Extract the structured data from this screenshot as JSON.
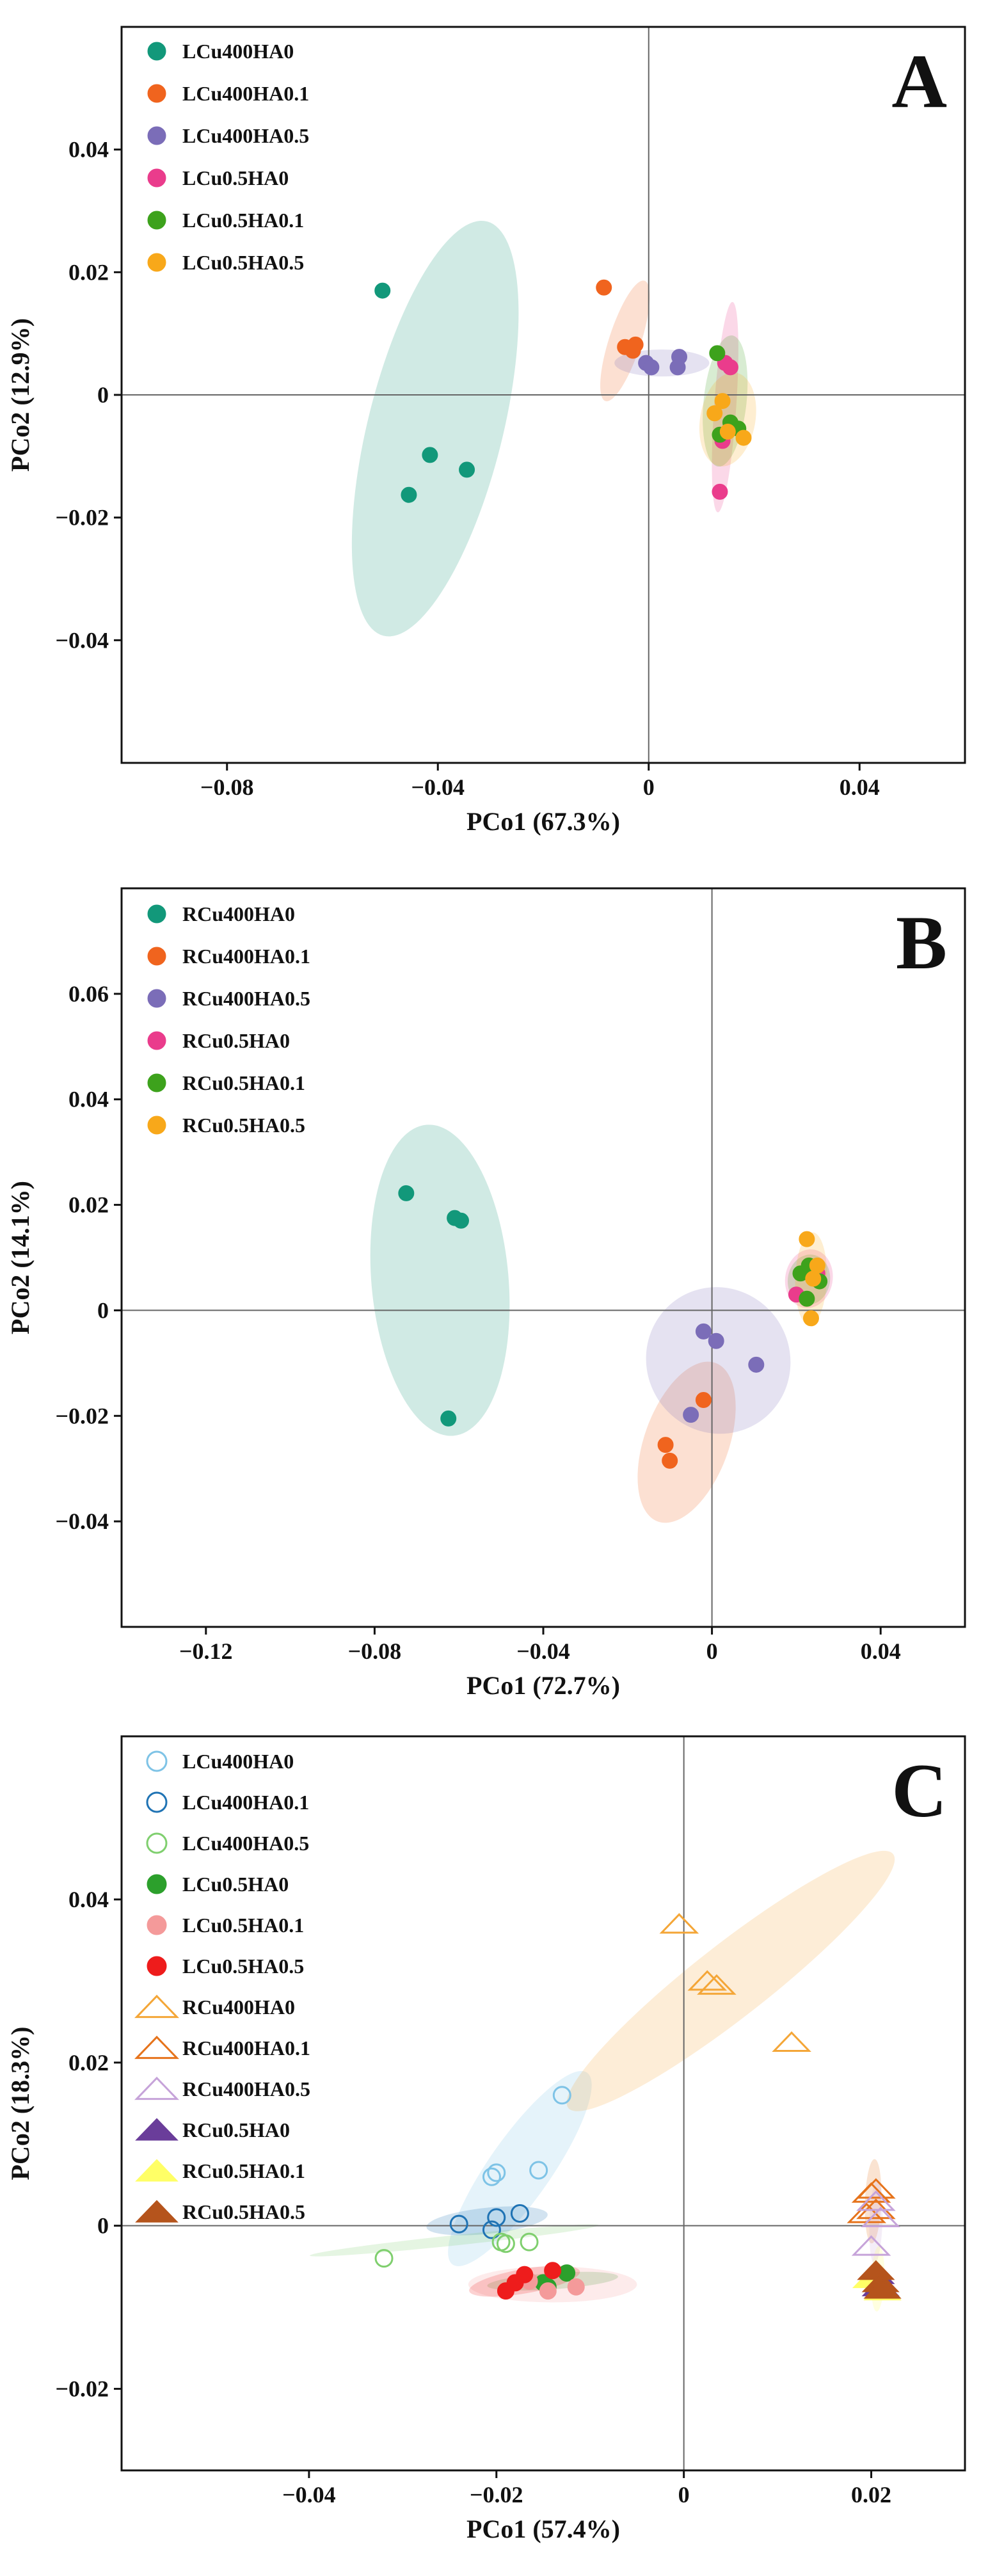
{
  "chart_data": [
    {
      "panel": "A",
      "type": "scatter",
      "xlabel": "PCo1 (67.3%)",
      "ylabel": "PCo2 (12.9%)",
      "xlim": [
        -0.1,
        0.06
      ],
      "ylim": [
        -0.06,
        0.06
      ],
      "xticks": [
        -0.08,
        -0.04,
        0,
        0.04
      ],
      "xtick_labels": [
        "−0.08",
        "−0.04",
        "0",
        "0.04"
      ],
      "yticks": [
        -0.04,
        -0.02,
        0,
        0.02,
        0.04
      ],
      "ytick_labels": [
        "−0.04",
        "−0.02",
        "0",
        "0.02",
        "0.04"
      ],
      "series": [
        {
          "name": "LCu400HA0",
          "color": "#12987a",
          "marker": "circle",
          "points": [
            [
              -0.0505,
              0.017
            ],
            [
              -0.0415,
              -0.0098
            ],
            [
              -0.0455,
              -0.0163
            ],
            [
              -0.0345,
              -0.0122
            ]
          ],
          "ellipse": {
            "cx": -0.0405,
            "cy": -0.0055,
            "rx": 0.0405,
            "ry": 0.011,
            "angle": -76
          }
        },
        {
          "name": "LCu400HA0.1",
          "color": "#f0641e",
          "marker": "circle",
          "points": [
            [
              -0.0085,
              0.0175
            ],
            [
              -0.0045,
              0.0078
            ],
            [
              -0.0025,
              0.0082
            ],
            [
              -0.003,
              0.0072
            ]
          ],
          "ellipse": {
            "cx": -0.0045,
            "cy": 0.0088,
            "rx": 0.012,
            "ry": 0.0026,
            "angle": -72
          }
        },
        {
          "name": "LCu400HA0.5",
          "color": "#7b6db8",
          "marker": "circle",
          "points": [
            [
              -0.0005,
              0.0052
            ],
            [
              0.0005,
              0.0045
            ],
            [
              0.0058,
              0.0062
            ],
            [
              0.0055,
              0.0045
            ]
          ],
          "ellipse": {
            "cx": 0.0025,
            "cy": 0.0052,
            "rx": 0.009,
            "ry": 0.0022,
            "angle": 0
          }
        },
        {
          "name": "LCu0.5HA0",
          "color": "#ea3c8c",
          "marker": "circle",
          "points": [
            [
              0.0135,
              -0.0158
            ],
            [
              0.0145,
              0.0052
            ],
            [
              0.0155,
              0.0045
            ],
            [
              0.014,
              -0.0075
            ]
          ],
          "ellipse": {
            "cx": 0.0145,
            "cy": -0.002,
            "rx": 0.02,
            "ry": 0.0018,
            "angle": -86
          }
        },
        {
          "name": "LCu0.5HA0.1",
          "color": "#3da21c",
          "marker": "circle",
          "points": [
            [
              0.013,
              0.0068
            ],
            [
              0.0135,
              -0.0065
            ],
            [
              0.0155,
              -0.0045
            ],
            [
              0.017,
              -0.0055
            ]
          ],
          "ellipse": {
            "cx": 0.0145,
            "cy": -0.001,
            "rx": 0.0125,
            "ry": 0.0035,
            "angle": -84
          }
        },
        {
          "name": "LCu0.5HA0.5",
          "color": "#f8a81a",
          "marker": "circle",
          "points": [
            [
              0.0125,
              -0.003
            ],
            [
              0.014,
              -0.001
            ],
            [
              0.015,
              -0.006
            ],
            [
              0.018,
              -0.007
            ]
          ],
          "ellipse": {
            "cx": 0.015,
            "cy": -0.004,
            "rx": 0.009,
            "ry": 0.0045,
            "angle": -80
          }
        }
      ]
    },
    {
      "panel": "B",
      "type": "scatter",
      "xlabel": "PCo1 (72.7%)",
      "ylabel": "PCo2 (14.1%)",
      "xlim": [
        -0.14,
        0.06
      ],
      "ylim": [
        -0.06,
        0.08
      ],
      "xticks": [
        -0.12,
        -0.08,
        -0.04,
        0,
        0.04
      ],
      "xtick_labels": [
        "−0.12",
        "−0.08",
        "−0.04",
        "0",
        "0.04"
      ],
      "yticks": [
        -0.04,
        -0.02,
        0,
        0.02,
        0.04,
        0.06
      ],
      "ytick_labels": [
        "−0.04",
        "−0.02",
        "0",
        "0.02",
        "0.04",
        "0.06"
      ],
      "series": [
        {
          "name": "RCu400HA0",
          "color": "#12987a",
          "marker": "circle",
          "points": [
            [
              -0.0725,
              0.0222
            ],
            [
              -0.061,
              0.0175
            ],
            [
              -0.0595,
              0.017
            ],
            [
              -0.0625,
              -0.0205
            ]
          ],
          "ellipse": {
            "cx": -0.0645,
            "cy": 0.0057,
            "rx": 0.037,
            "ry": 0.013,
            "angle": -95
          }
        },
        {
          "name": "RCu400HA0.1",
          "color": "#f0641e",
          "marker": "circle",
          "points": [
            [
              -0.002,
              -0.017
            ],
            [
              -0.011,
              -0.0255
            ],
            [
              -0.01,
              -0.0285
            ]
          ],
          "ellipse": {
            "cx": -0.006,
            "cy": -0.025,
            "rx": 0.02,
            "ry": 0.008,
            "angle": -70
          }
        },
        {
          "name": "RCu400HA0.5",
          "color": "#7b6db8",
          "marker": "circle",
          "points": [
            [
              -0.002,
              -0.004
            ],
            [
              0.001,
              -0.0058
            ],
            [
              0.0105,
              -0.0103
            ],
            [
              -0.005,
              -0.0198
            ]
          ],
          "ellipse": {
            "cx": 0.0015,
            "cy": -0.0095,
            "rx": 0.017,
            "ry": 0.014,
            "angle": -30
          }
        },
        {
          "name": "RCu0.5HA0",
          "color": "#ea3c8c",
          "marker": "circle",
          "points": [
            [
              0.02,
              0.003
            ],
            [
              0.0235,
              0.008
            ],
            [
              0.025,
              0.007
            ]
          ],
          "ellipse": {
            "cx": 0.023,
            "cy": 0.006,
            "rx": 0.007,
            "ry": 0.0045,
            "angle": -80
          }
        },
        {
          "name": "RCu0.5HA0.1",
          "color": "#3da21c",
          "marker": "circle",
          "points": [
            [
              0.021,
              0.007
            ],
            [
              0.023,
              0.0085
            ],
            [
              0.0255,
              0.0055
            ],
            [
              0.0225,
              0.0022
            ]
          ],
          "ellipse": {
            "cx": 0.023,
            "cy": 0.0058,
            "rx": 0.006,
            "ry": 0.004,
            "angle": -80
          }
        },
        {
          "name": "RCu0.5HA0.5",
          "color": "#f8a81a",
          "marker": "circle",
          "points": [
            [
              0.0225,
              0.0135
            ],
            [
              0.024,
              0.006
            ],
            [
              0.025,
              0.0085
            ],
            [
              0.0235,
              -0.0015
            ]
          ],
          "ellipse": {
            "cx": 0.0235,
            "cy": 0.006,
            "rx": 0.011,
            "ry": 0.003,
            "angle": -88
          }
        }
      ]
    },
    {
      "panel": "C",
      "type": "scatter",
      "xlabel": "PCo1 (57.4%)",
      "ylabel": "PCo2 (18.3%)",
      "xlim": [
        -0.06,
        0.03
      ],
      "ylim": [
        -0.03,
        0.06
      ],
      "xticks": [
        -0.04,
        -0.02,
        0,
        0.02
      ],
      "xtick_labels": [
        "−0.04",
        "−0.02",
        "0",
        "0.02"
      ],
      "yticks": [
        -0.02,
        0,
        0.02,
        0.04
      ],
      "ytick_labels": [
        "−0.02",
        "0",
        "0.02",
        "0.04"
      ],
      "series": [
        {
          "name": "LCu400HA0",
          "color": "#7ec3e6",
          "marker": "circle-open",
          "points": [
            [
              -0.013,
              0.016
            ],
            [
              -0.0205,
              0.006
            ],
            [
              -0.02,
              0.0065
            ],
            [
              -0.0155,
              0.0068
            ]
          ],
          "ellipse": {
            "cx": -0.0175,
            "cy": 0.007,
            "rx": 0.0125,
            "ry": 0.0038,
            "angle": -55
          }
        },
        {
          "name": "LCu400HA0.1",
          "color": "#1f73b4",
          "marker": "circle-open",
          "points": [
            [
              -0.024,
              0.0002
            ],
            [
              -0.02,
              0.001
            ],
            [
              -0.0175,
              0.0015
            ],
            [
              -0.0205,
              -0.0005
            ]
          ],
          "ellipse": {
            "cx": -0.021,
            "cy": 0.0006,
            "rx": 0.0065,
            "ry": 0.0016,
            "angle": -6
          }
        },
        {
          "name": "LCu400HA0.5",
          "color": "#7fcf6e",
          "marker": "circle-open",
          "points": [
            [
              -0.032,
              -0.004
            ],
            [
              -0.0195,
              -0.002
            ],
            [
              -0.019,
              -0.0022
            ],
            [
              -0.0165,
              -0.002
            ]
          ],
          "ellipse": {
            "cx": -0.0245,
            "cy": -0.0018,
            "rx": 0.0155,
            "ry": 0.0006,
            "angle": -6
          }
        },
        {
          "name": "LCu0.5HA0",
          "color": "#2ca02c",
          "marker": "circle",
          "points": [
            [
              -0.015,
              -0.007
            ],
            [
              -0.0125,
              -0.0058
            ],
            [
              -0.0145,
              -0.0075
            ]
          ],
          "ellipse": {
            "cx": -0.014,
            "cy": -0.0068,
            "rx": 0.007,
            "ry": 0.001,
            "angle": -4
          }
        },
        {
          "name": "LCu0.5HA0.1",
          "color": "#f49a9a",
          "marker": "circle",
          "points": [
            [
              -0.0165,
              -0.0068
            ],
            [
              -0.0145,
              -0.008
            ],
            [
              -0.0115,
              -0.0075
            ]
          ],
          "ellipse": {
            "cx": -0.014,
            "cy": -0.0072,
            "rx": 0.009,
            "ry": 0.0022,
            "angle": 0
          }
        },
        {
          "name": "LCu0.5HA0.5",
          "color": "#ee1c1c",
          "marker": "circle",
          "points": [
            [
              -0.019,
              -0.008
            ],
            [
              -0.018,
              -0.007
            ],
            [
              -0.017,
              -0.006
            ],
            [
              -0.014,
              -0.0055
            ]
          ],
          "ellipse": {
            "cx": -0.017,
            "cy": -0.0068,
            "rx": 0.006,
            "ry": 0.0015,
            "angle": -10
          }
        },
        {
          "name": "RCu400HA0",
          "color": "#f4a637",
          "marker": "triangle-open",
          "points": [
            [
              -0.0005,
              0.037
            ],
            [
              0.0025,
              0.03
            ],
            [
              0.0035,
              0.0295
            ],
            [
              0.0115,
              0.0225
            ]
          ],
          "ellipse": {
            "cx": 0.005,
            "cy": 0.03,
            "rx": 0.022,
            "ry": 0.0045,
            "angle": -38
          }
        },
        {
          "name": "RCu400HA0.1",
          "color": "#e6731b",
          "marker": "triangle-open",
          "points": [
            [
              0.02,
              0.004
            ],
            [
              0.0205,
              0.0045
            ],
            [
              0.0195,
              0.0015
            ],
            [
              0.0205,
              0.002
            ]
          ],
          "ellipse": {
            "cx": 0.0202,
            "cy": 0.003,
            "rx": 0.0045,
            "ry": 0.001,
            "angle": -88
          }
        },
        {
          "name": "RCu400HA0.5",
          "color": "#c6a3d9",
          "marker": "triangle-open",
          "points": [
            [
              0.0205,
              0.003
            ],
            [
              0.02,
              -0.0025
            ],
            [
              0.021,
              0.001
            ]
          ],
          "ellipse": {
            "cx": 0.0205,
            "cy": 0.0005,
            "rx": 0.0045,
            "ry": 0.0008,
            "angle": -88
          }
        },
        {
          "name": "RCu0.5HA0",
          "color": "#6a3d9a",
          "marker": "triangle",
          "points": [
            [
              0.0205,
              -0.006
            ],
            [
              0.021,
              -0.0075
            ]
          ],
          "ellipse": null
        },
        {
          "name": "RCu0.5HA0.1",
          "color": "#ffff66",
          "marker": "triangle",
          "points": [
            [
              0.02,
              -0.0065
            ],
            [
              0.0212,
              -0.008
            ]
          ],
          "ellipse": {
            "cx": 0.0207,
            "cy": -0.0065,
            "rx": 0.0035,
            "ry": 0.0008,
            "angle": -88
          }
        },
        {
          "name": "RCu0.5HA0.5",
          "color": "#b5541c",
          "marker": "triangle",
          "points": [
            [
              0.0205,
              -0.0055
            ],
            [
              0.021,
              -0.007
            ],
            [
              0.0212,
              -0.0078
            ]
          ],
          "ellipse": null
        }
      ]
    }
  ]
}
